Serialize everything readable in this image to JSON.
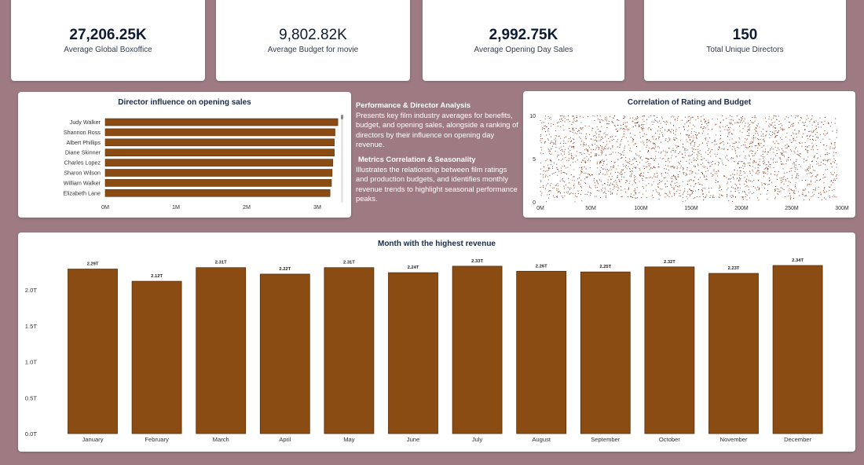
{
  "kpis": [
    {
      "value": "27,206.25K",
      "label": "Average Global Boxoffice"
    },
    {
      "value": "9,802.82K",
      "label": "Average Budget for movie"
    },
    {
      "value": "2,992.75K",
      "label": "Average Opening Day Sales"
    },
    {
      "value": "150",
      "label": "Total Unique Directors"
    }
  ],
  "description": {
    "section1_title": "Performance & Director Analysis",
    "section1_text": "Presents key film industry averages for benefits, budget, and opening sales, alongside a ranking of directors by their influence on opening day revenue.",
    "section2_title": "Metrics Correlation & Seasonality",
    "section2_text": "Illustrates the relationship between film ratings and production budgets, and identifies monthly revenue trends to highlight seasonal performance peaks."
  },
  "colors": {
    "bar": "#8b4c13",
    "bar_stroke": "#5a2f08",
    "scatter": "#7a2e10",
    "background": "#9e7a82"
  },
  "chart_data": [
    {
      "type": "bar",
      "orientation": "horizontal",
      "title": "Director influence on opening sales",
      "categories": [
        "Judy Walker",
        "Shannon Ross",
        "Albert Phillips",
        "Diane Skinner",
        "Charles Lopez",
        "Sharon Wilson",
        "William Walker",
        "Elizabeth Lane"
      ],
      "values": [
        3290000,
        3250000,
        3240000,
        3240000,
        3220000,
        3210000,
        3200000,
        3180000
      ],
      "xticks": [
        "0M",
        "1M",
        "2M",
        "3M"
      ],
      "xlim": [
        0,
        3000000
      ],
      "grid": false
    },
    {
      "type": "scatter",
      "title": "Correlation of Rating and Budget",
      "xticks": [
        "0M",
        "50M",
        "100M",
        "150M",
        "200M",
        "250M",
        "300M"
      ],
      "yticks": [
        "0",
        "5",
        "10"
      ],
      "xlim": [
        0,
        300000000
      ],
      "ylim": [
        0,
        10
      ],
      "points_note": "dense uniform cloud, ratings 0-10, budgets 0-300M"
    },
    {
      "type": "bar",
      "title": "Month with the highest revenue",
      "categories": [
        "January",
        "February",
        "March",
        "April",
        "May",
        "June",
        "July",
        "August",
        "September",
        "October",
        "November",
        "December"
      ],
      "values": [
        2.29,
        2.12,
        2.31,
        2.22,
        2.31,
        2.24,
        2.33,
        2.26,
        2.25,
        2.32,
        2.23,
        2.34
      ],
      "labels": [
        "2.29T",
        "2.12T",
        "2.31T",
        "2.22T",
        "2.31T",
        "2.24T",
        "2.33T",
        "2.26T",
        "2.25T",
        "2.32T",
        "2.23T",
        "2.34T"
      ],
      "yticks": [
        "0.0T",
        "0.5T",
        "1.0T",
        "1.5T",
        "2.0T"
      ],
      "ylim": [
        0,
        2.34
      ],
      "grid": false
    }
  ]
}
